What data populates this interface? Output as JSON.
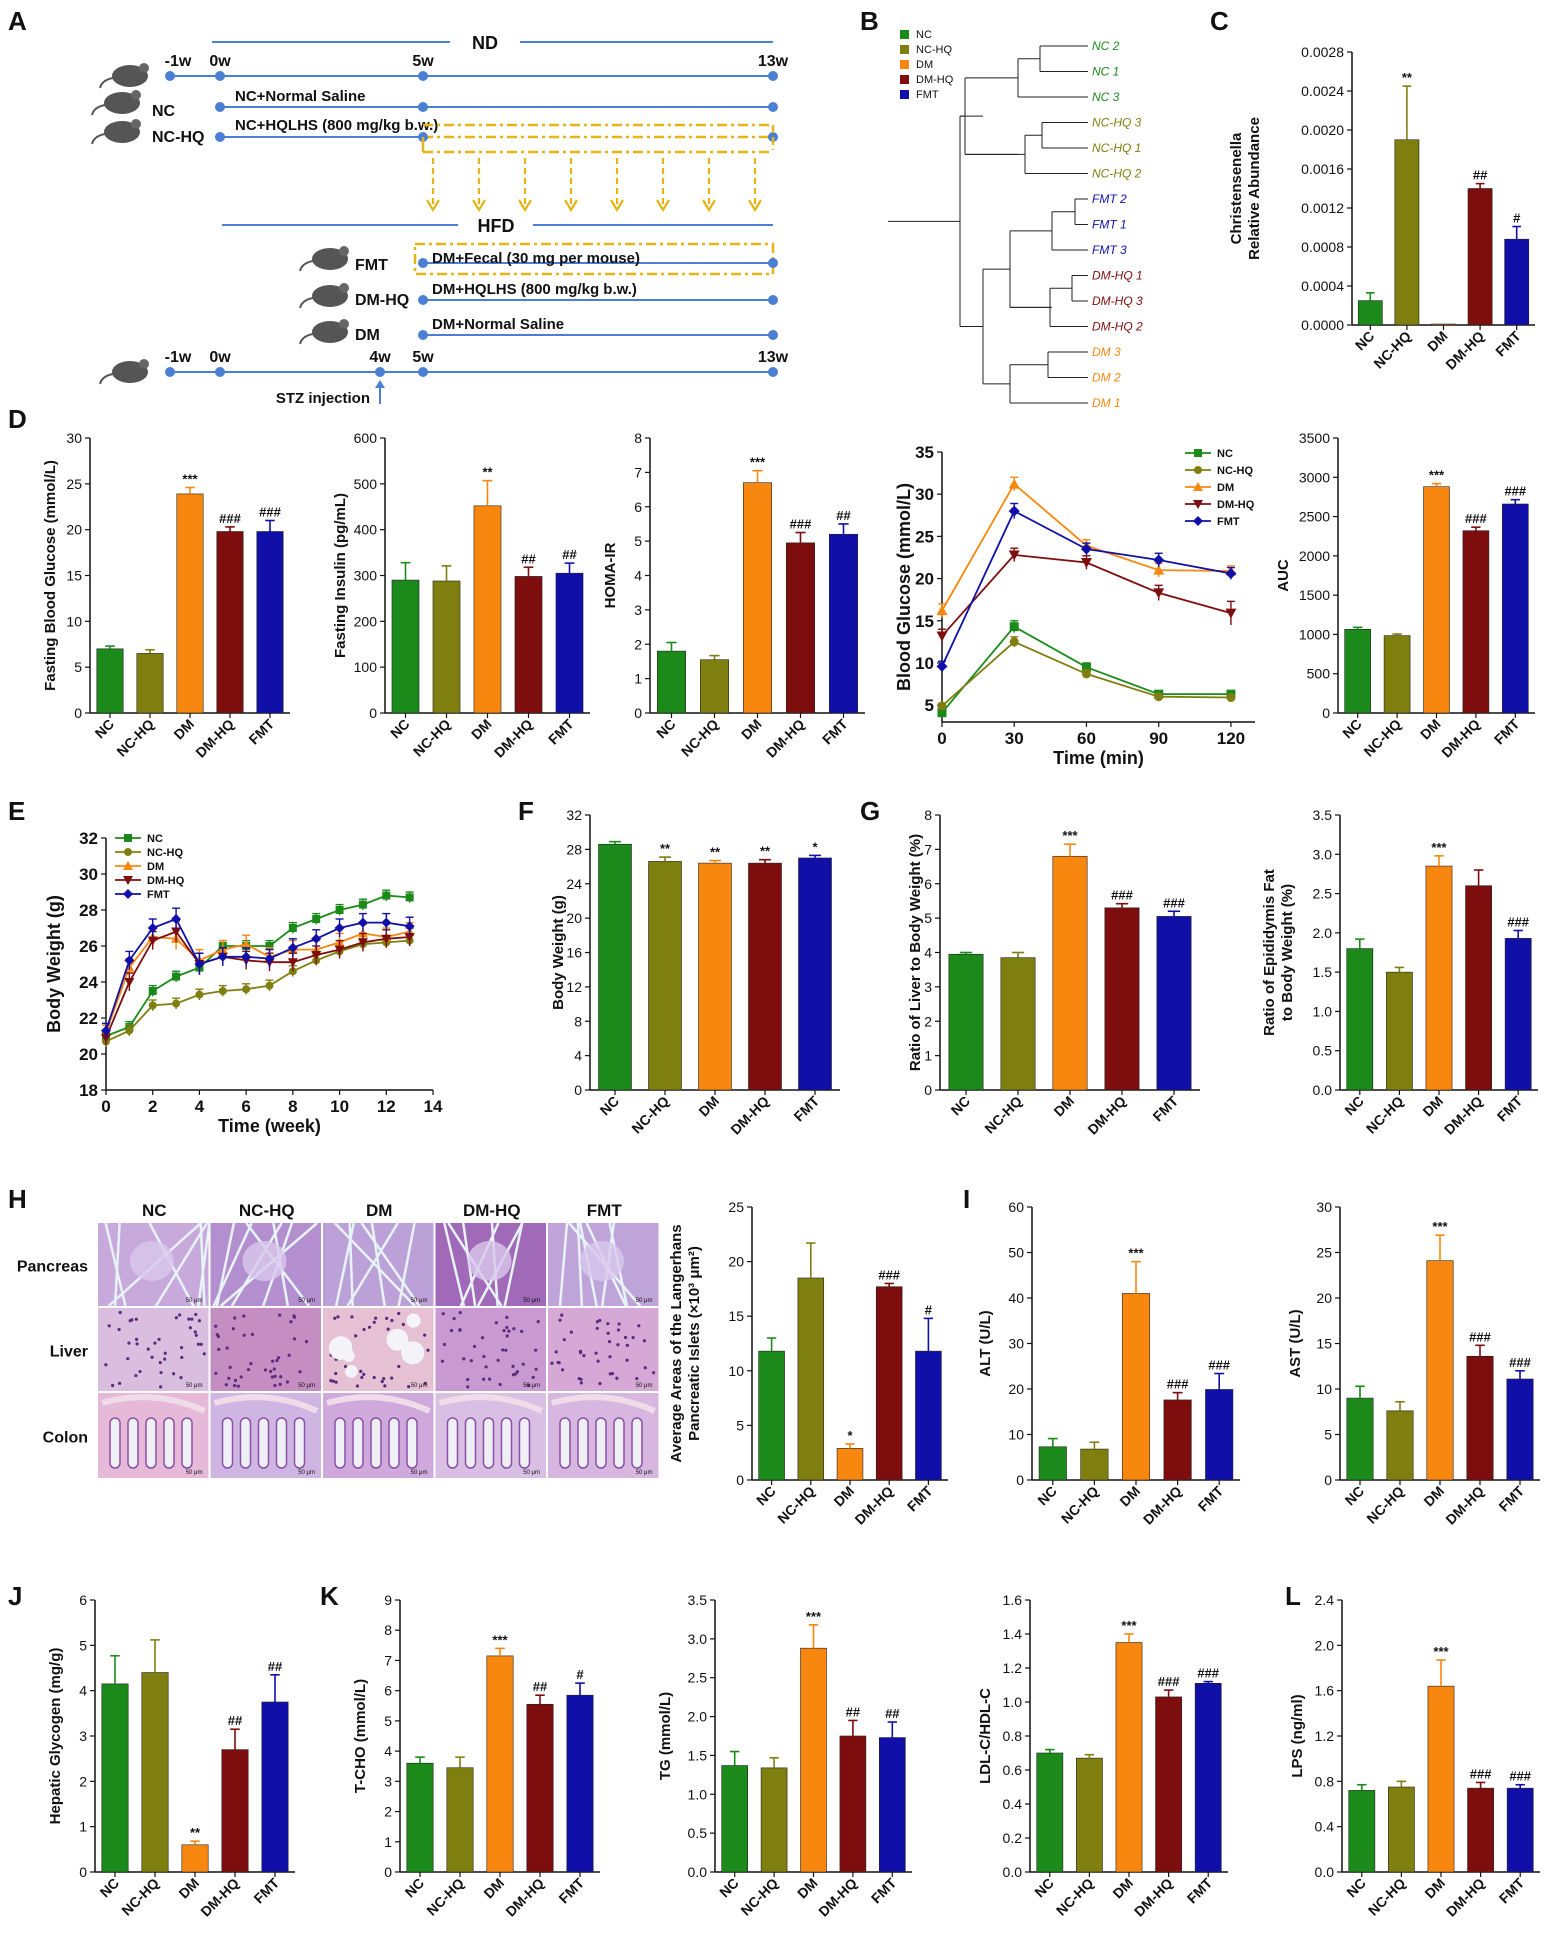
{
  "palette": {
    "NC": "#1b8a1b",
    "NC-HQ": "#7f7f10",
    "DM": "#f8870f",
    "DM-HQ": "#7e0d0d",
    "FMT": "#1010a8",
    "line": "#4a7fd4",
    "dash": "#e6b417"
  },
  "panel_labels": [
    "A",
    "B",
    "C",
    "D",
    "E",
    "F",
    "G",
    "H",
    "I",
    "J",
    "K",
    "L"
  ],
  "groups": [
    "NC",
    "NC-HQ",
    "DM",
    "DM-HQ",
    "FMT"
  ],
  "panel_A": {
    "nd_label": "ND",
    "hfd_label": "HFD",
    "top_ticks": [
      "-1w",
      "0w",
      "5w",
      "13w"
    ],
    "bottom_ticks": [
      "-1w",
      "0w",
      "4w",
      "5w",
      "13w"
    ],
    "rows": [
      {
        "group": "NC",
        "text": "NC+Normal Saline"
      },
      {
        "group": "NC-HQ",
        "text": "NC+HQLHS (800 mg/kg b.w.)"
      },
      {
        "group": "FMT",
        "text": "DM+Fecal (30 mg per mouse)"
      },
      {
        "group": "DM-HQ",
        "text": "DM+HQLHS (800 mg/kg b.w.)"
      },
      {
        "group": "DM",
        "text": "DM+Normal Saline"
      }
    ],
    "stz_label": "STZ injection"
  },
  "panel_B": {
    "legend": [
      "NC",
      "NC-HQ",
      "DM",
      "DM-HQ",
      "FMT"
    ],
    "leaves": [
      {
        "label": "NC 2",
        "group": "NC"
      },
      {
        "label": "NC 1",
        "group": "NC"
      },
      {
        "label": "NC 3",
        "group": "NC"
      },
      {
        "label": "NC-HQ 3",
        "group": "NC-HQ"
      },
      {
        "label": "NC-HQ 1",
        "group": "NC-HQ"
      },
      {
        "label": "NC-HQ 2",
        "group": "NC-HQ"
      },
      {
        "label": "FMT 2",
        "group": "FMT"
      },
      {
        "label": "FMT 1",
        "group": "FMT"
      },
      {
        "label": "FMT 3",
        "group": "FMT"
      },
      {
        "label": "DM-HQ 1",
        "group": "DM-HQ"
      },
      {
        "label": "DM-HQ 3",
        "group": "DM-HQ"
      },
      {
        "label": "DM-HQ 2",
        "group": "DM-HQ"
      },
      {
        "label": "DM 3",
        "group": "DM"
      },
      {
        "label": "DM 2",
        "group": "DM"
      },
      {
        "label": "DM 1",
        "group": "DM"
      }
    ]
  },
  "chart_data": [
    {
      "id": "C",
      "type": "bar",
      "ylabel": "Christensenella\nRelative Abundance",
      "ylim": [
        0,
        0.0028
      ],
      "yticks": [
        "0.0000",
        "0.0004",
        "0.0008",
        "0.0012",
        "0.0016",
        "0.0020",
        "0.0024",
        "0.0028"
      ],
      "categories": [
        "NC",
        "NC-HQ",
        "DM",
        "DM-HQ",
        "FMT"
      ],
      "values": [
        0.00025,
        0.0019,
        1e-05,
        0.0014,
        0.00088
      ],
      "errors": [
        8e-05,
        0.00055,
        0,
        5e-05,
        0.00013
      ],
      "annotations": [
        "",
        "**",
        "",
        "##",
        "#"
      ]
    },
    {
      "id": "D1",
      "type": "bar",
      "ylabel": "Fasting Blood Glucose (mmol/L)",
      "ylim": [
        0,
        30
      ],
      "yticks": [
        "0",
        "5",
        "10",
        "15",
        "20",
        "25",
        "30"
      ],
      "categories": [
        "NC",
        "NC-HQ",
        "DM",
        "DM-HQ",
        "FMT"
      ],
      "values": [
        7.0,
        6.5,
        23.9,
        19.8,
        19.8
      ],
      "errors": [
        0.3,
        0.4,
        0.7,
        0.5,
        1.2
      ],
      "annotations": [
        "",
        "",
        "***",
        "###",
        "###"
      ]
    },
    {
      "id": "D2",
      "type": "bar",
      "ylabel": "Fasting Insulin (pg/mL)",
      "ylim": [
        0,
        600
      ],
      "yticks": [
        "0",
        "100",
        "200",
        "300",
        "400",
        "500",
        "600"
      ],
      "categories": [
        "NC",
        "NC-HQ",
        "DM",
        "DM-HQ",
        "FMT"
      ],
      "values": [
        290,
        288,
        452,
        298,
        305
      ],
      "errors": [
        38,
        33,
        55,
        20,
        22
      ],
      "annotations": [
        "",
        "",
        "**",
        "##",
        "##"
      ]
    },
    {
      "id": "D3",
      "type": "bar",
      "ylabel": "HOMA-IR",
      "ylim": [
        0,
        8
      ],
      "yticks": [
        "0",
        "1",
        "2",
        "3",
        "4",
        "5",
        "6",
        "7",
        "8"
      ],
      "categories": [
        "NC",
        "NC-HQ",
        "DM",
        "DM-HQ",
        "FMT"
      ],
      "values": [
        1.8,
        1.55,
        6.7,
        4.95,
        5.2
      ],
      "errors": [
        0.25,
        0.12,
        0.35,
        0.3,
        0.3
      ],
      "annotations": [
        "",
        "",
        "***",
        "###",
        "##"
      ]
    },
    {
      "id": "D4",
      "type": "line",
      "xlabel": "Time (min)",
      "ylabel": "Blood Glucose (mmol/L)",
      "x": [
        0,
        30,
        60,
        90,
        120
      ],
      "xlim": [
        0,
        130
      ],
      "ylim": [
        3,
        35
      ],
      "xticks": [
        "0",
        "30",
        "60",
        "90",
        "120"
      ],
      "yticks": [
        "5",
        "10",
        "15",
        "20",
        "25",
        "30",
        "35"
      ],
      "legend": [
        "NC",
        "NC-HQ",
        "DM",
        "DM-HQ",
        "FMT"
      ],
      "series": [
        {
          "name": "NC",
          "values": [
            4.1,
            14.3,
            9.5,
            6.3,
            6.3
          ],
          "errors": [
            0.3,
            0.7,
            0.5,
            0.3,
            0.3
          ],
          "marker": "square"
        },
        {
          "name": "NC-HQ",
          "values": [
            4.9,
            12.5,
            8.7,
            6.0,
            5.9
          ],
          "errors": [
            0.3,
            0.6,
            0.5,
            0.3,
            0.3
          ],
          "marker": "circle"
        },
        {
          "name": "DM",
          "values": [
            16.2,
            31.2,
            23.9,
            21.0,
            20.9
          ],
          "errors": [
            0.8,
            0.8,
            0.7,
            0.8,
            0.6
          ],
          "marker": "triangle"
        },
        {
          "name": "DM-HQ",
          "values": [
            13.2,
            22.8,
            21.9,
            18.3,
            15.9
          ],
          "errors": [
            0.8,
            0.8,
            0.8,
            0.9,
            1.4
          ],
          "marker": "triangle-down"
        },
        {
          "name": "FMT",
          "values": [
            9.6,
            28.0,
            23.5,
            22.2,
            20.6
          ],
          "errors": [
            0.6,
            0.9,
            0.7,
            0.8,
            0.7
          ],
          "marker": "diamond"
        }
      ]
    },
    {
      "id": "D5",
      "type": "bar",
      "ylabel": "AUC",
      "ylim": [
        0,
        3500
      ],
      "yticks": [
        "0",
        "500",
        "1000",
        "1500",
        "2000",
        "2500",
        "3000",
        "3500"
      ],
      "categories": [
        "NC",
        "NC-HQ",
        "DM",
        "DM-HQ",
        "FMT"
      ],
      "values": [
        1065,
        985,
        2880,
        2320,
        2660
      ],
      "errors": [
        25,
        20,
        40,
        45,
        55
      ],
      "annotations": [
        "",
        "",
        "***",
        "###",
        "###"
      ]
    },
    {
      "id": "E",
      "type": "line",
      "xlabel": "Time (week)",
      "ylabel": "Body Weight (g)",
      "x": [
        0,
        1,
        2,
        3,
        4,
        5,
        6,
        7,
        8,
        9,
        10,
        11,
        12,
        13
      ],
      "xlim": [
        0,
        14
      ],
      "ylim": [
        18,
        32
      ],
      "xticks": [
        "0",
        "2",
        "4",
        "6",
        "8",
        "10",
        "12",
        "14"
      ],
      "yticks": [
        "18",
        "20",
        "22",
        "24",
        "26",
        "28",
        "30",
        "32"
      ],
      "legend": [
        "NC",
        "NC-HQ",
        "DM",
        "DM-HQ",
        "FMT"
      ],
      "series": [
        {
          "name": "NC",
          "values": [
            21.0,
            21.5,
            23.5,
            24.3,
            24.8,
            26.0,
            26.0,
            26.0,
            27.0,
            27.5,
            28.0,
            28.3,
            28.8,
            28.7
          ],
          "errors": [
            0.3,
            0.3,
            0.3,
            0.3,
            0.3,
            0.3,
            0.3,
            0.3,
            0.3,
            0.3,
            0.3,
            0.3,
            0.3,
            0.3
          ],
          "marker": "square"
        },
        {
          "name": "NC-HQ",
          "values": [
            20.7,
            21.3,
            22.7,
            22.8,
            23.3,
            23.5,
            23.6,
            23.8,
            24.6,
            25.2,
            25.7,
            26.1,
            26.2,
            26.3
          ],
          "errors": [
            0.3,
            0.3,
            0.3,
            0.3,
            0.3,
            0.3,
            0.3,
            0.3,
            0.3,
            0.3,
            0.3,
            0.3,
            0.3,
            0.3
          ],
          "marker": "circle"
        },
        {
          "name": "DM",
          "values": [
            21.2,
            24.8,
            26.5,
            26.4,
            25.2,
            25.8,
            26.1,
            25.4,
            25.8,
            25.8,
            26.2,
            26.7,
            26.5,
            26.8
          ],
          "errors": [
            0.4,
            0.5,
            0.5,
            0.6,
            0.6,
            0.5,
            0.5,
            0.5,
            0.5,
            0.5,
            0.5,
            0.5,
            0.5,
            0.5
          ],
          "marker": "triangle"
        },
        {
          "name": "DM-HQ",
          "values": [
            20.9,
            24.0,
            26.3,
            26.8,
            25.0,
            25.4,
            25.2,
            25.1,
            25.1,
            25.5,
            25.8,
            26.2,
            26.4,
            26.5
          ],
          "errors": [
            0.4,
            0.5,
            0.5,
            0.6,
            0.6,
            0.5,
            0.5,
            0.5,
            0.5,
            0.5,
            0.5,
            0.5,
            0.5,
            0.5
          ],
          "marker": "triangle-down"
        },
        {
          "name": "FMT",
          "values": [
            21.3,
            25.2,
            27.0,
            27.5,
            25.0,
            25.4,
            25.4,
            25.3,
            25.9,
            26.4,
            27.0,
            27.3,
            27.3,
            27.1
          ],
          "errors": [
            0.4,
            0.5,
            0.5,
            0.6,
            0.6,
            0.5,
            0.5,
            0.5,
            0.5,
            0.5,
            0.5,
            0.5,
            0.5,
            0.5
          ],
          "marker": "diamond"
        }
      ]
    },
    {
      "id": "F",
      "type": "bar",
      "ylabel": "Body Weight (g)",
      "ylim": [
        0,
        32
      ],
      "yticks": [
        "0",
        "4",
        "8",
        "12",
        "16",
        "20",
        "24",
        "28",
        "32"
      ],
      "categories": [
        "NC",
        "NC-HQ",
        "DM",
        "DM-HQ",
        "FMT"
      ],
      "values": [
        28.6,
        26.6,
        26.4,
        26.4,
        27.0
      ],
      "errors": [
        0.3,
        0.5,
        0.3,
        0.4,
        0.3
      ],
      "annotations": [
        "",
        "**",
        "**",
        "**",
        "*"
      ]
    },
    {
      "id": "G1",
      "type": "bar",
      "ylabel": "Ratio of Liver to Body Weight (%)",
      "ylim": [
        0,
        8
      ],
      "yticks": [
        "0",
        "1",
        "2",
        "3",
        "4",
        "5",
        "6",
        "7",
        "8"
      ],
      "categories": [
        "NC",
        "NC-HQ",
        "DM",
        "DM-HQ",
        "FMT"
      ],
      "values": [
        3.95,
        3.85,
        6.8,
        5.3,
        5.05
      ],
      "errors": [
        0.05,
        0.15,
        0.35,
        0.12,
        0.15
      ],
      "annotations": [
        "",
        "",
        "***",
        "###",
        "###"
      ]
    },
    {
      "id": "G2",
      "type": "bar",
      "ylabel": "Ratio of Epididymis Fat\nto Body Weight (%)",
      "ylim": [
        0,
        3.5
      ],
      "yticks": [
        "0.0",
        "0.5",
        "1.0",
        "1.5",
        "2.0",
        "2.5",
        "3.0",
        "3.5"
      ],
      "categories": [
        "NC",
        "NC-HQ",
        "DM",
        "DM-HQ",
        "FMT"
      ],
      "values": [
        1.8,
        1.5,
        2.85,
        2.6,
        1.93
      ],
      "errors": [
        0.12,
        0.06,
        0.13,
        0.2,
        0.1
      ],
      "annotations": [
        "",
        "",
        "***",
        "",
        "###"
      ]
    },
    {
      "id": "H",
      "type": "bar",
      "ylabel": "Average Areas of the Langerhans\nPancreatic Islets (×10³ μm²)",
      "ylim": [
        0,
        25
      ],
      "yticks": [
        "0",
        "5",
        "10",
        "15",
        "20",
        "25"
      ],
      "categories": [
        "NC",
        "NC-HQ",
        "DM",
        "DM-HQ",
        "FMT"
      ],
      "values": [
        11.8,
        18.5,
        2.9,
        17.7,
        11.8
      ],
      "errors": [
        1.2,
        3.2,
        0.4,
        0.3,
        3.0
      ],
      "annotations": [
        "",
        "",
        "*",
        "###",
        "#"
      ]
    },
    {
      "id": "I1",
      "type": "bar",
      "ylabel": "ALT (U/L)",
      "ylim": [
        0,
        60
      ],
      "yticks": [
        "0",
        "10",
        "20",
        "30",
        "40",
        "50",
        "60"
      ],
      "categories": [
        "NC",
        "NC-HQ",
        "DM",
        "DM-HQ",
        "FMT"
      ],
      "values": [
        7.3,
        6.8,
        41.0,
        17.6,
        19.9
      ],
      "errors": [
        1.8,
        1.5,
        7.0,
        1.6,
        3.5
      ],
      "annotations": [
        "",
        "",
        "***",
        "###",
        "###"
      ]
    },
    {
      "id": "I2",
      "type": "bar",
      "ylabel": "AST (U/L)",
      "ylim": [
        0,
        30
      ],
      "yticks": [
        "0",
        "5",
        "10",
        "15",
        "20",
        "25",
        "30"
      ],
      "categories": [
        "NC",
        "NC-HQ",
        "DM",
        "DM-HQ",
        "FMT"
      ],
      "values": [
        9.0,
        7.6,
        24.1,
        13.6,
        11.1
      ],
      "errors": [
        1.3,
        1.0,
        2.8,
        1.2,
        0.9
      ],
      "annotations": [
        "",
        "",
        "***",
        "###",
        "###"
      ]
    },
    {
      "id": "J",
      "type": "bar",
      "ylabel": "Hepatic Glycogen (mg/g)",
      "ylim": [
        0,
        6
      ],
      "yticks": [
        "0",
        "1",
        "2",
        "3",
        "4",
        "5",
        "6"
      ],
      "categories": [
        "NC",
        "NC-HQ",
        "DM",
        "DM-HQ",
        "FMT"
      ],
      "values": [
        4.15,
        4.4,
        0.6,
        2.7,
        3.75
      ],
      "errors": [
        0.62,
        0.72,
        0.08,
        0.45,
        0.6
      ],
      "annotations": [
        "",
        "",
        "**",
        "##",
        "##"
      ]
    },
    {
      "id": "K1",
      "type": "bar",
      "ylabel": "T-CHO (mmol/L)",
      "ylim": [
        0,
        9
      ],
      "yticks": [
        "0",
        "1",
        "2",
        "3",
        "4",
        "5",
        "6",
        "7",
        "8",
        "9"
      ],
      "categories": [
        "NC",
        "NC-HQ",
        "DM",
        "DM-HQ",
        "FMT"
      ],
      "values": [
        3.6,
        3.45,
        7.15,
        5.55,
        5.85
      ],
      "errors": [
        0.2,
        0.35,
        0.25,
        0.3,
        0.4
      ],
      "annotations": [
        "",
        "",
        "***",
        "##",
        "#"
      ]
    },
    {
      "id": "K2",
      "type": "bar",
      "ylabel": "TG (mmol/L)",
      "ylim": [
        0,
        3.5
      ],
      "yticks": [
        "0.0",
        "0.5",
        "1.0",
        "1.5",
        "2.0",
        "2.5",
        "3.0",
        "3.5"
      ],
      "categories": [
        "NC",
        "NC-HQ",
        "DM",
        "DM-HQ",
        "FMT"
      ],
      "values": [
        1.37,
        1.34,
        2.88,
        1.75,
        1.73
      ],
      "errors": [
        0.18,
        0.13,
        0.3,
        0.2,
        0.2
      ],
      "annotations": [
        "",
        "",
        "***",
        "##",
        "##"
      ]
    },
    {
      "id": "K3",
      "type": "bar",
      "ylabel": "LDL-C/HDL-C",
      "ylim": [
        0,
        1.6
      ],
      "yticks": [
        "0.0",
        "0.2",
        "0.4",
        "0.6",
        "0.8",
        "1.0",
        "1.2",
        "1.4",
        "1.6"
      ],
      "categories": [
        "NC",
        "NC-HQ",
        "DM",
        "DM-HQ",
        "FMT"
      ],
      "values": [
        0.7,
        0.67,
        1.35,
        1.03,
        1.11
      ],
      "errors": [
        0.02,
        0.02,
        0.05,
        0.04,
        0.01
      ],
      "annotations": [
        "",
        "",
        "***",
        "###",
        "###"
      ]
    },
    {
      "id": "L",
      "type": "bar",
      "ylabel": "LPS (ng/ml)",
      "ylim": [
        0,
        2.4
      ],
      "yticks": [
        "0.0",
        "0.4",
        "0.8",
        "1.2",
        "1.6",
        "2.0",
        "2.4"
      ],
      "categories": [
        "NC",
        "NC-HQ",
        "DM",
        "DM-HQ",
        "FMT"
      ],
      "values": [
        0.72,
        0.75,
        1.64,
        0.74,
        0.74
      ],
      "errors": [
        0.05,
        0.05,
        0.23,
        0.05,
        0.03
      ],
      "annotations": [
        "",
        "",
        "***",
        "###",
        "###"
      ]
    }
  ],
  "histology": {
    "columns": [
      "NC",
      "NC-HQ",
      "DM",
      "DM-HQ",
      "FMT"
    ],
    "rows": [
      "Pancreas",
      "Liver",
      "Colon"
    ],
    "scale_text": "50 μm"
  }
}
